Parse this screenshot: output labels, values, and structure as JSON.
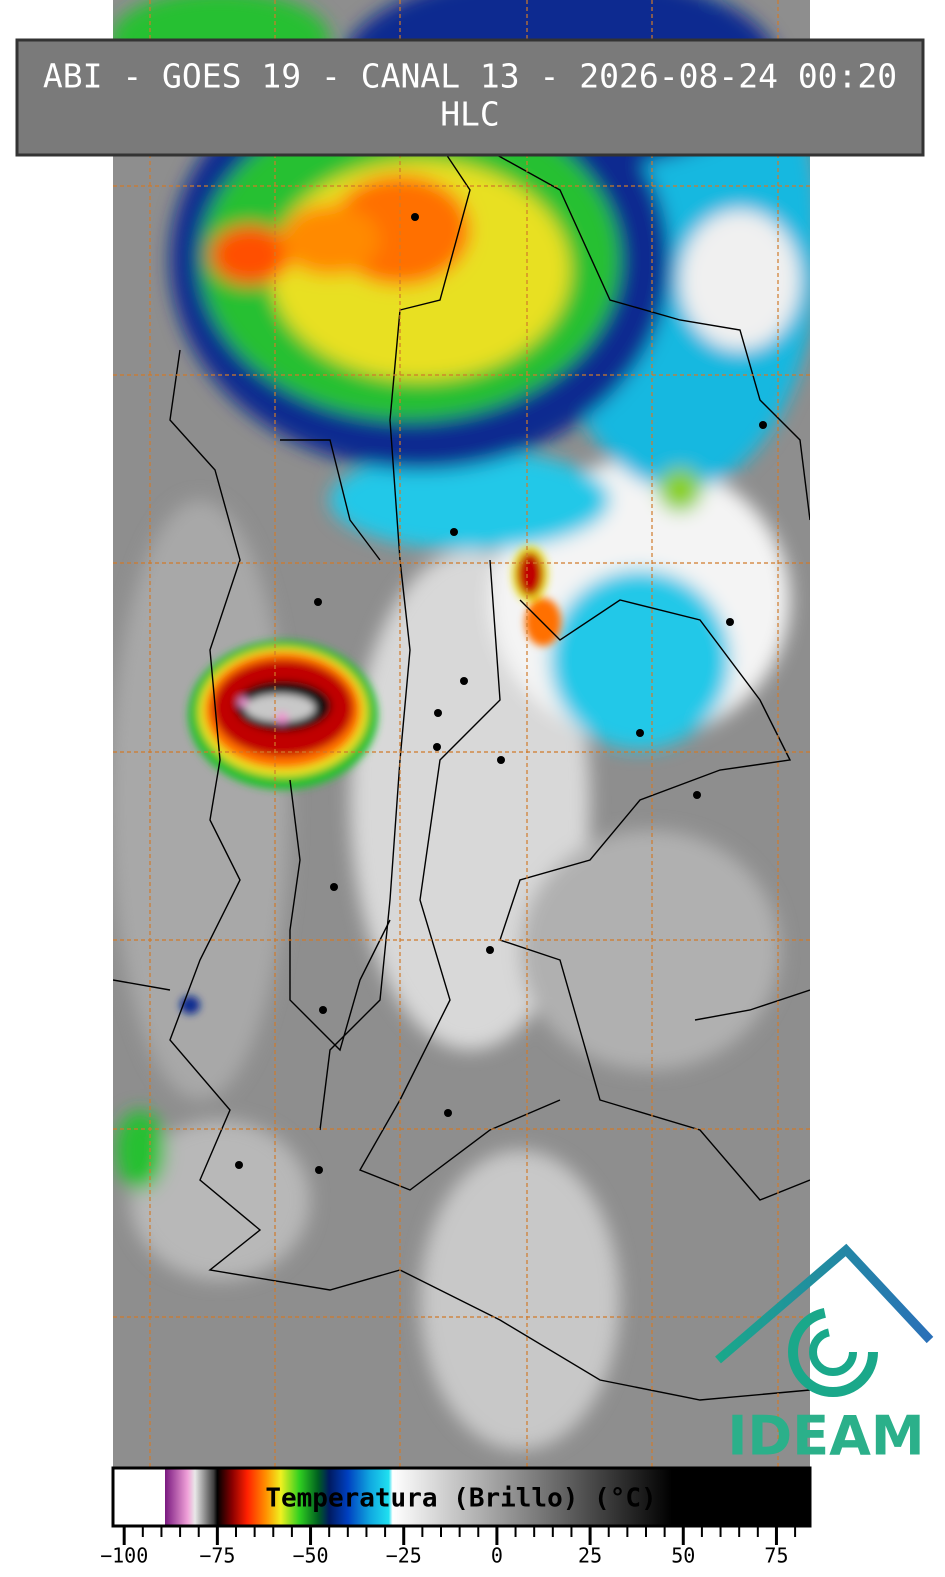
{
  "header": {
    "title": "ABI - GOES 19 - CANAL 13 - 2026-08-24 00:20",
    "subtitle": "HLC"
  },
  "colorbar": {
    "label": "Temperatura (Brillo) (°C)",
    "xlim": [
      -103,
      84
    ],
    "ticks": [
      {
        "value": -100,
        "label": "−100"
      },
      {
        "value": -75,
        "label": "−75"
      },
      {
        "value": -50,
        "label": "−50"
      },
      {
        "value": -25,
        "label": "−25"
      },
      0,
      25,
      50,
      75
    ],
    "minor_ticks": [
      -95,
      -90,
      -85,
      -80,
      -70,
      -65,
      -60,
      -55,
      -45,
      -40,
      -35,
      -30,
      -20,
      -15,
      -10,
      -5,
      5,
      10,
      15,
      20,
      30,
      35,
      40,
      45,
      55,
      60,
      65,
      70,
      80
    ],
    "colormap": [
      {
        "value": -103,
        "color": "#ffffff"
      },
      {
        "value": -89,
        "color": "#ffffff"
      },
      {
        "value": -89,
        "color": "#7a1a80"
      },
      {
        "value": -83,
        "color": "#f0a0d8"
      },
      {
        "value": -81,
        "color": "#e8e8e8"
      },
      {
        "value": -76,
        "color": "#404040"
      },
      {
        "value": -75,
        "color": "#000000"
      },
      {
        "value": -71,
        "color": "#8a0000"
      },
      {
        "value": -67,
        "color": "#ff2000"
      },
      {
        "value": -62,
        "color": "#ff9000"
      },
      {
        "value": -58,
        "color": "#f0f020"
      },
      {
        "value": -53,
        "color": "#30d020"
      },
      {
        "value": -48,
        "color": "#006020"
      },
      {
        "value": -45,
        "color": "#001a60"
      },
      {
        "value": -40,
        "color": "#0040c0"
      },
      {
        "value": -34,
        "color": "#10a8e0"
      },
      {
        "value": -29,
        "color": "#20e0f0"
      },
      {
        "value": -28,
        "color": "#ffffff"
      },
      {
        "value": 47,
        "color": "#000000"
      },
      {
        "value": 84,
        "color": "#000000"
      }
    ]
  },
  "logo": {
    "text": "IDEAM"
  }
}
